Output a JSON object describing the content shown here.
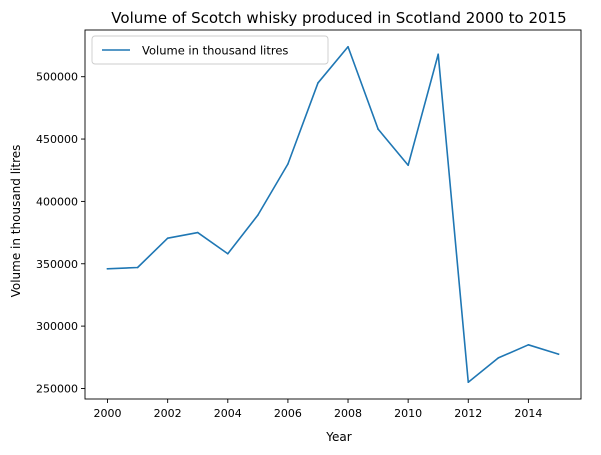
{
  "chart_data": {
    "type": "line",
    "title": "Volume of Scotch whisky produced in Scotland 2000 to 2015",
    "xlabel": "Year",
    "ylabel": "Volume in thousand litres",
    "x": [
      2000,
      2001,
      2002,
      2003,
      2004,
      2005,
      2006,
      2007,
      2008,
      2009,
      2010,
      2011,
      2012,
      2013,
      2014,
      2015
    ],
    "series": [
      {
        "name": "Volume in thousand litres",
        "color": "#1f77b4",
        "values": [
          346000,
          347000,
          370500,
          375000,
          358000,
          389000,
          430000,
          495000,
          524000,
          458000,
          429000,
          518000,
          255000,
          274500,
          285000,
          277500
        ]
      }
    ],
    "xticks": [
      2000,
      2002,
      2004,
      2006,
      2008,
      2010,
      2012,
      2014
    ],
    "yticks": [
      250000,
      300000,
      350000,
      400000,
      450000,
      500000
    ],
    "xlim": [
      1999.25,
      2015.75
    ],
    "ylim": [
      241550,
      537450
    ],
    "grid": false,
    "legend_position": "top-left"
  }
}
